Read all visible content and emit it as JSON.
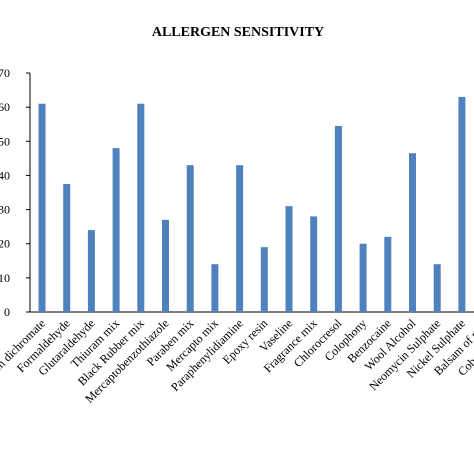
{
  "chart_data": {
    "type": "bar",
    "title": "ALLERGEN SENSITIVITY",
    "categories": [
      "Potassium dichromate",
      "Formaldehyde",
      "Glutaraldehyde",
      "Thiuram mix",
      "Black Rubber mix",
      "Mercaptobenzothiazole",
      "Paraben mix",
      "Mercapto mix",
      "Paraphenylidiamine",
      "Epoxy resin",
      "Vaseline",
      "Fragrance mix",
      "Chlorocresol",
      "Colophony",
      "Benzocaine",
      "Wool Alcohol",
      "Neomycin Sulphate",
      "Nickel Sulphate",
      "Balsam of peru",
      "Cobalt chloride"
    ],
    "values": [
      61,
      37.5,
      24,
      48,
      61,
      27,
      43,
      14,
      43,
      19,
      31,
      28,
      54.5,
      20,
      22,
      46.5,
      14,
      63,
      null,
      null
    ],
    "color": "#4f81bd",
    "ylim": [
      0,
      70
    ],
    "yticks": [
      0,
      10,
      20,
      30,
      40,
      50,
      60,
      70
    ],
    "grid": false
  }
}
